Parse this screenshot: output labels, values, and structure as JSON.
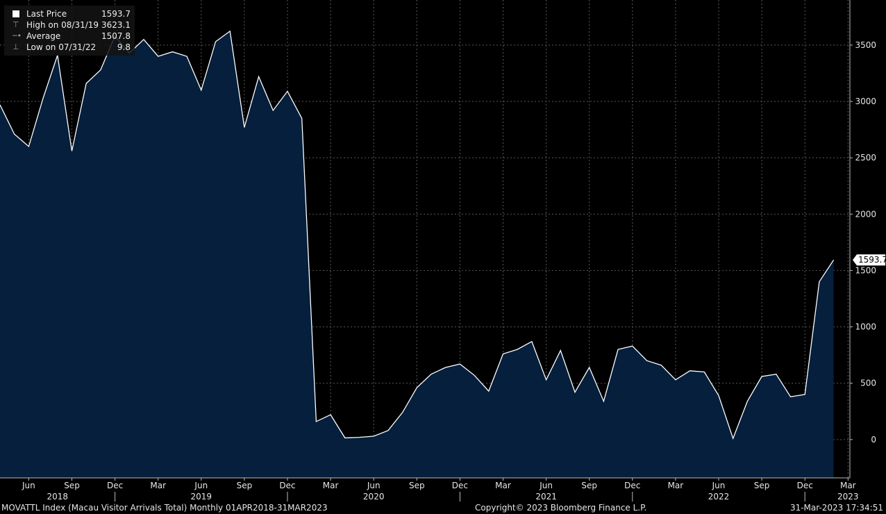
{
  "legend": {
    "items": [
      {
        "label": "Last Price",
        "value": "1593.7",
        "marker": "filled-square"
      },
      {
        "label": "High on 08/31/19",
        "value": "3623.1",
        "marker": "high-mark"
      },
      {
        "label": "Average",
        "value": "1507.8",
        "marker": "average-mark"
      },
      {
        "label": "Low on 07/31/22",
        "value": "9.8",
        "marker": "low-mark"
      }
    ]
  },
  "footer": {
    "left": "MOVATTL Index (Macau Visitor Arrivals Total)  Monthly 01APR2018-31MAR2023",
    "center": "Copyright© 2023 Bloomberg Finance L.P.",
    "right": "31-Mar-2023 17:34:51"
  },
  "chart_data": {
    "type": "area",
    "ylim": [
      -340,
      3900
    ],
    "y_ticks": [
      0,
      500,
      1000,
      1500,
      2000,
      2500,
      3000,
      3500
    ],
    "last_value_label": "1593.7",
    "x_ticks": [
      {
        "label": "Jun",
        "index": 2
      },
      {
        "label": "Sep",
        "index": 5
      },
      {
        "label": "Dec",
        "index": 8
      },
      {
        "label": "Mar",
        "index": 11
      },
      {
        "label": "Jun",
        "index": 14
      },
      {
        "label": "Sep",
        "index": 17
      },
      {
        "label": "Dec",
        "index": 20
      },
      {
        "label": "Mar",
        "index": 23
      },
      {
        "label": "Jun",
        "index": 26
      },
      {
        "label": "Sep",
        "index": 29
      },
      {
        "label": "Dec",
        "index": 32
      },
      {
        "label": "Mar",
        "index": 35
      },
      {
        "label": "Jun",
        "index": 38
      },
      {
        "label": "Sep",
        "index": 41
      },
      {
        "label": "Dec",
        "index": 44
      },
      {
        "label": "Mar",
        "index": 47
      },
      {
        "label": "Jun",
        "index": 50
      },
      {
        "label": "Sep",
        "index": 53
      },
      {
        "label": "Dec",
        "index": 56
      },
      {
        "label": "Mar",
        "index": 59
      }
    ],
    "years": [
      {
        "label": "2018",
        "index": 4.0
      },
      {
        "label": "2019",
        "index": 14.0
      },
      {
        "label": "2020",
        "index": 26.0
      },
      {
        "label": "2021",
        "index": 38.0
      },
      {
        "label": "2022",
        "index": 50.0
      },
      {
        "label": "2023",
        "index": 59.0
      }
    ],
    "year_separators": [
      8.0,
      20.0,
      32.0,
      44.0,
      56.0
    ],
    "series": [
      {
        "values": [
          2970,
          2710,
          2600,
          3030,
          3410,
          2560,
          3160,
          3280,
          3580,
          3430,
          3550,
          3400,
          3440,
          3400,
          3100,
          3530,
          3623.1,
          2770,
          3220,
          2920,
          3090,
          2850,
          160,
          220,
          15,
          20,
          30,
          80,
          240,
          460,
          580,
          640,
          670,
          570,
          430,
          760,
          800,
          870,
          530,
          790,
          420,
          640,
          340,
          800,
          830,
          700,
          660,
          530,
          610,
          600,
          390,
          9.8,
          340,
          560,
          580,
          380,
          400,
          1400,
          1593.7
        ]
      }
    ]
  }
}
